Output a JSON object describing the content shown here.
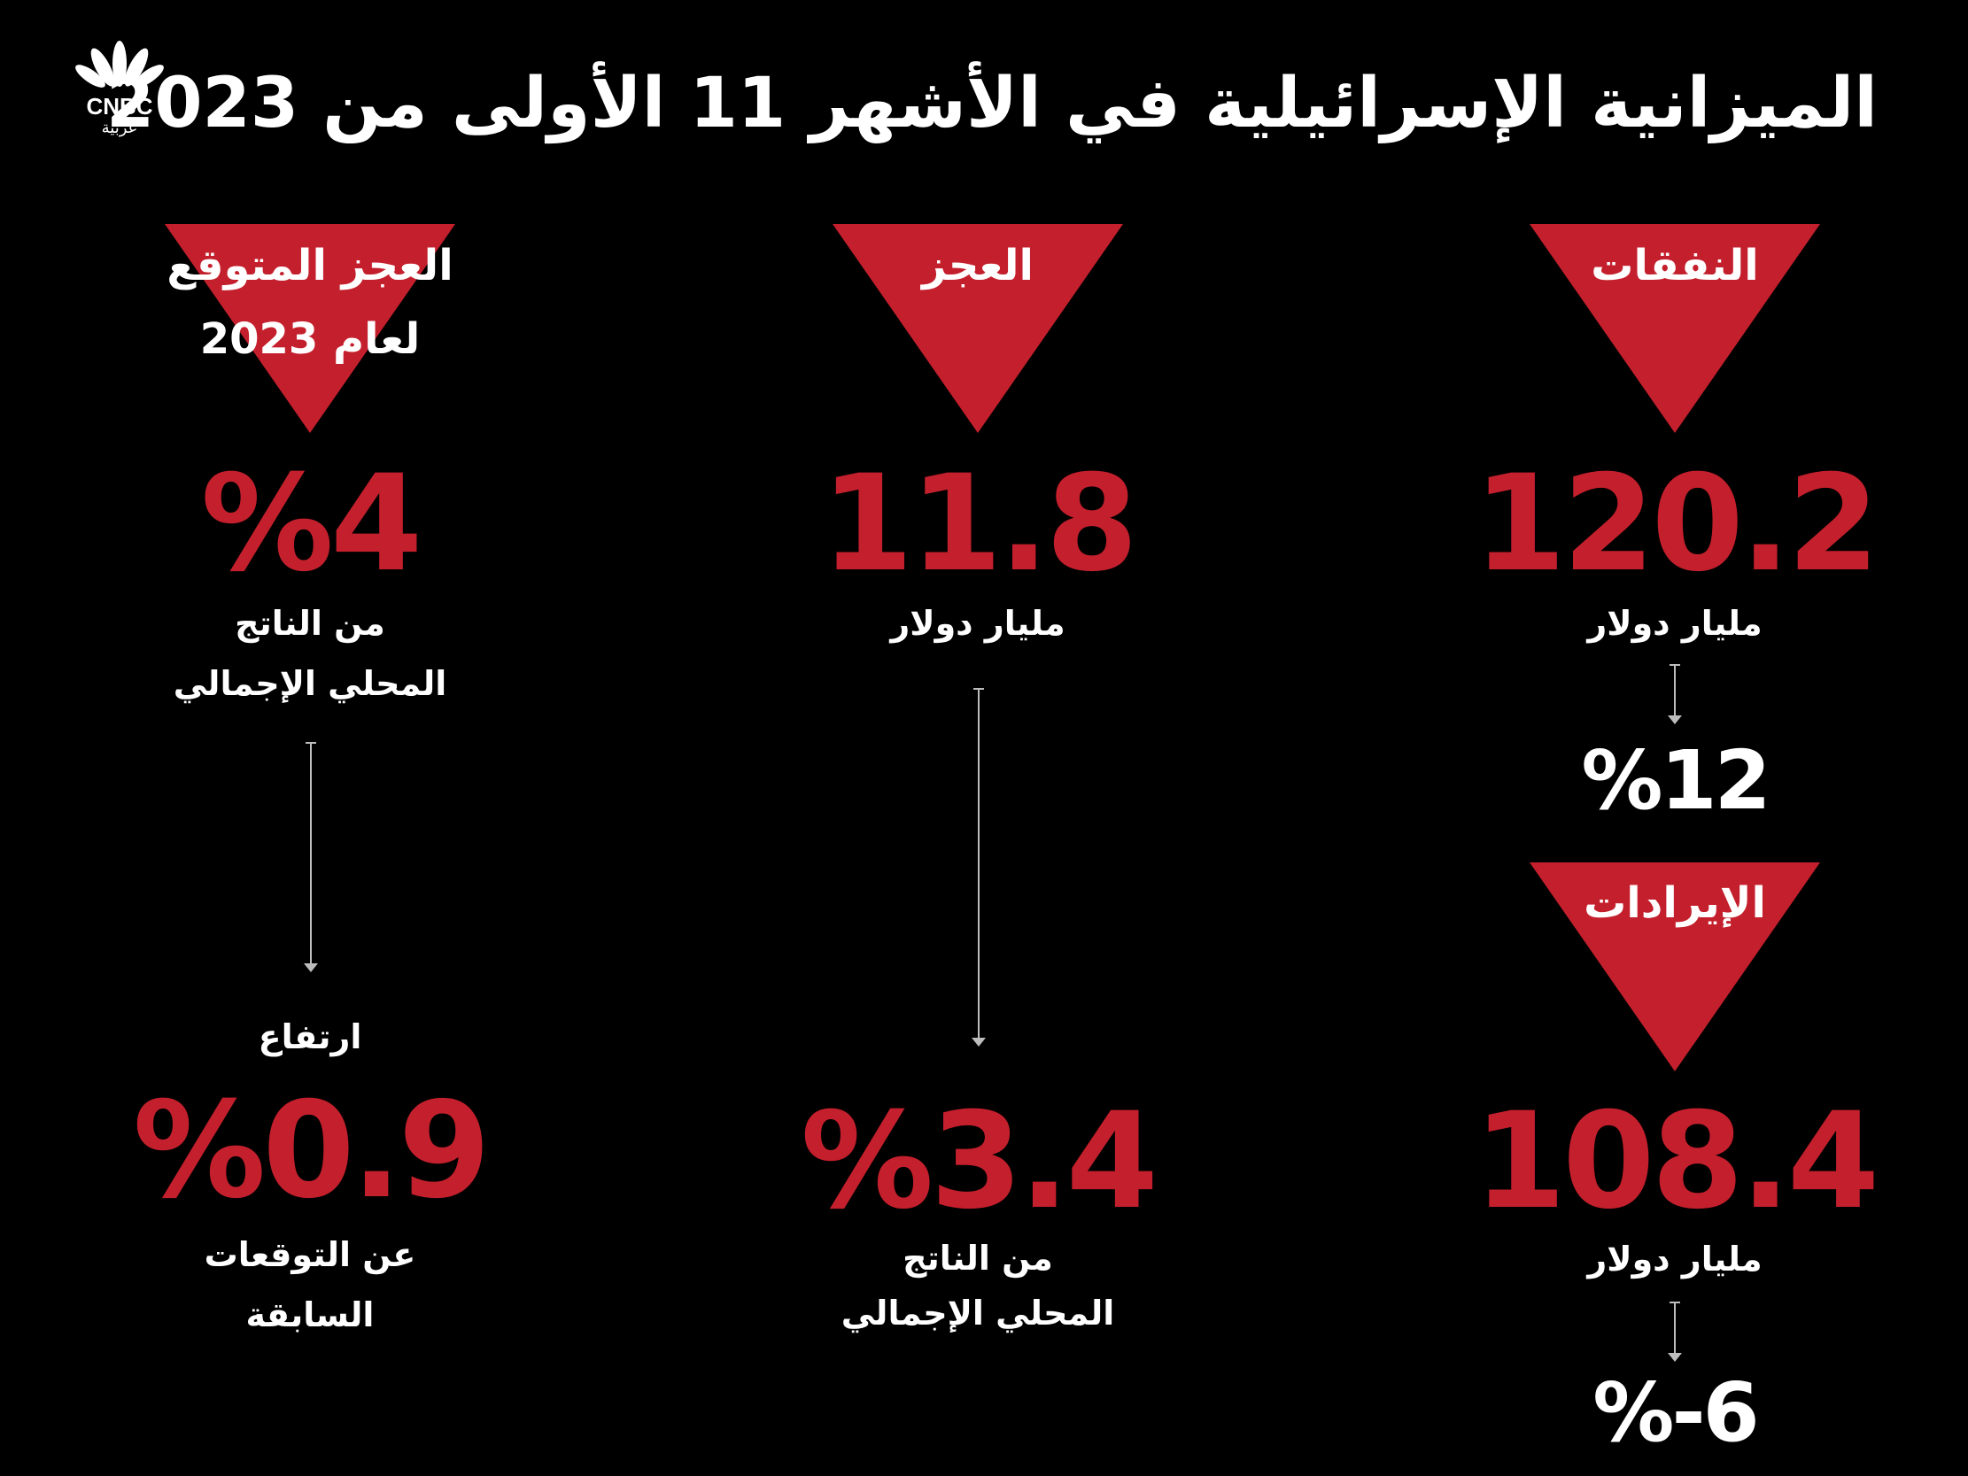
{
  "logo": {
    "brand": "CNBC",
    "sub": "عربية"
  },
  "title": "الميزانية الإسرائيلية في الأشهر 11 الأولى من 2023",
  "colors": {
    "accent": "#c41f2c",
    "background": "#000000",
    "text": "#ffffff"
  },
  "expenses": {
    "label": "النفقات",
    "value": "120.2",
    "unit": "مليار دولار",
    "change": "%12"
  },
  "revenues": {
    "label": "الإيرادات",
    "value": "108.4",
    "unit": "مليار دولار",
    "change": "%-6"
  },
  "deficit": {
    "label": "العجز",
    "value": "11.8",
    "unit": "مليار دولار",
    "gdp_value": "%3.4",
    "gdp_line1": "من الناتج",
    "gdp_line2": "المحلي الإجمالي"
  },
  "expected_deficit": {
    "label_line1": "العجز المتوقع",
    "label_line2": "لعام 2023",
    "value": "%4",
    "gdp_line1": "من الناتج",
    "gdp_line2": "المحلي الإجمالي",
    "rise_label": "ارتفاع",
    "rise_value": "%0.9",
    "rise_line1": "عن التوقعات",
    "rise_line2": "السابقة"
  }
}
